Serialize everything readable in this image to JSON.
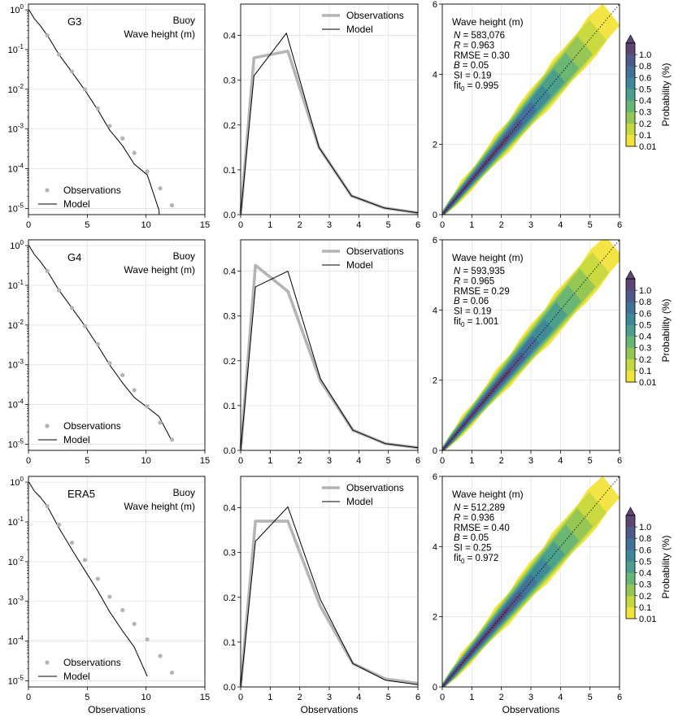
{
  "figure": {
    "xlabel": "Observations",
    "colorbar": {
      "label": "Probability (%)",
      "ticks": [
        "0.01",
        "0.1",
        "0.2",
        "0.3",
        "0.4",
        "0.5",
        "0.6",
        "0.8",
        "1.0"
      ],
      "colors": [
        "#f1e43b",
        "#c6d83f",
        "#93c657",
        "#68b576",
        "#4b9f8c",
        "#3f8898",
        "#43709a",
        "#4f5a8a",
        "#5d4673"
      ]
    },
    "colors": {
      "obs": "#b4b4b4",
      "model": "#000000",
      "density_outer": "#eee04c",
      "density_inner": "#5e3b66"
    }
  },
  "chart_data": [
    {
      "type": "line",
      "panel": "tail-G3",
      "title": "G3",
      "annotation": [
        "Buoy",
        "Wave height (m)"
      ],
      "yscale": "log",
      "xlim": [
        0,
        15
      ],
      "ylim": [
        7e-06,
        1.4
      ],
      "xticks": [
        "0",
        "5",
        "10",
        "15"
      ],
      "yticks": [
        {
          "exp": "0",
          "v": 1
        },
        {
          "exp": "-1",
          "v": 0.1
        },
        {
          "exp": "-2",
          "v": 0.01
        },
        {
          "exp": "-3",
          "v": 0.001
        },
        {
          "exp": "-4",
          "v": 0.0001
        },
        {
          "exp": "-5",
          "v": 1e-05
        }
      ],
      "legend": [
        "Observations",
        "Model"
      ],
      "series": [
        {
          "name": "Observations",
          "style": "dots",
          "x": [
            1.6,
            2.6,
            3.7,
            4.8,
            5.9,
            6.9,
            8.0,
            9.0,
            10.1,
            11.2,
            12.2
          ],
          "y": [
            0.23,
            0.075,
            0.028,
            0.01,
            0.0033,
            0.0012,
            0.00058,
            0.00025,
            8.5e-05,
            3.2e-05,
            1.2e-05
          ]
        },
        {
          "name": "Model",
          "style": "line",
          "x": [
            0.05,
            0.5,
            1.0,
            1.6,
            2.6,
            3.7,
            4.8,
            5.9,
            6.9,
            8.0,
            9.0,
            10.1,
            11.1,
            11.15
          ],
          "y": [
            1.0,
            0.6,
            0.4,
            0.23,
            0.075,
            0.027,
            0.0095,
            0.003,
            0.00095,
            0.00038,
            0.00013,
            7e-05,
            9e-06,
            3e-06
          ]
        }
      ]
    },
    {
      "type": "line",
      "panel": "pdf-G3",
      "xlim": [
        0,
        6
      ],
      "ylim": [
        0,
        0.47
      ],
      "xticks": [
        "0",
        "1",
        "2",
        "3",
        "4",
        "5",
        "6"
      ],
      "yticks": [
        "0.0",
        "0.1",
        "0.2",
        "0.3",
        "0.4"
      ],
      "legend": [
        "Observations",
        "Model"
      ],
      "series": [
        {
          "name": "Observations",
          "x": [
            0.0,
            0.45,
            1.6,
            2.65,
            3.75,
            4.85,
            6.0
          ],
          "y": [
            0.0,
            0.35,
            0.365,
            0.15,
            0.042,
            0.015,
            0.004
          ]
        },
        {
          "name": "Model",
          "x": [
            0.0,
            0.45,
            1.55,
            2.65,
            3.75,
            4.85,
            6.0
          ],
          "y": [
            0.0,
            0.31,
            0.405,
            0.15,
            0.042,
            0.015,
            0.004
          ]
        }
      ]
    },
    {
      "type": "heatmap",
      "panel": "density-G3",
      "xlim": [
        0,
        6
      ],
      "ylim": [
        0,
        6
      ],
      "xticks": [
        "0",
        "1",
        "2",
        "3",
        "4",
        "5",
        "6"
      ],
      "yticks": [
        "0",
        "2",
        "4",
        "6"
      ],
      "title": "Wave height (m)",
      "stats": [
        {
          "k": "N",
          "v": " = 583,076"
        },
        {
          "k": "R",
          "v": " = 0.963"
        },
        {
          "k": "RMSE",
          "v": " = 0.30"
        },
        {
          "k": "B",
          "v": " = 0.05"
        },
        {
          "k": "SI",
          "v": " = 0.19"
        },
        {
          "k": "fit",
          "v": " = 0.995"
        }
      ],
      "upper_extent": 5.7
    },
    {
      "type": "line",
      "panel": "tail-G4",
      "title": "G4",
      "annotation": [
        "Buoy",
        "Wave height (m)"
      ],
      "yscale": "log",
      "xlim": [
        0,
        15
      ],
      "ylim": [
        7e-06,
        1.4
      ],
      "xticks": [
        "0",
        "5",
        "10",
        "15"
      ],
      "yticks": [
        {
          "exp": "0",
          "v": 1
        },
        {
          "exp": "-1",
          "v": 0.1
        },
        {
          "exp": "-2",
          "v": 0.01
        },
        {
          "exp": "-3",
          "v": 0.001
        },
        {
          "exp": "-4",
          "v": 0.0001
        },
        {
          "exp": "-5",
          "v": 1e-05
        }
      ],
      "legend": [
        "Observations",
        "Model"
      ],
      "series": [
        {
          "name": "Observations",
          "style": "dots",
          "x": [
            1.6,
            2.6,
            3.7,
            4.8,
            5.9,
            6.9,
            8.0,
            9.0,
            10.1,
            11.2,
            12.2
          ],
          "y": [
            0.23,
            0.075,
            0.027,
            0.0095,
            0.0033,
            0.0011,
            0.00055,
            0.00023,
            9e-05,
            3.5e-05,
            1.3e-05
          ]
        },
        {
          "name": "Model",
          "style": "line",
          "x": [
            0.05,
            0.5,
            1.0,
            1.6,
            2.6,
            3.7,
            4.8,
            5.9,
            6.9,
            8.0,
            9.0,
            10.1,
            11.1,
            12.2
          ],
          "y": [
            1.0,
            0.6,
            0.4,
            0.23,
            0.075,
            0.027,
            0.0095,
            0.003,
            0.001,
            0.00035,
            0.00015,
            8.5e-05,
            5e-05,
            1.2e-05
          ]
        }
      ]
    },
    {
      "type": "line",
      "panel": "pdf-G4",
      "xlim": [
        0,
        6
      ],
      "ylim": [
        0,
        0.47
      ],
      "xticks": [
        "0",
        "1",
        "2",
        "3",
        "4",
        "5",
        "6"
      ],
      "yticks": [
        "0.0",
        "0.1",
        "0.2",
        "0.3",
        "0.4"
      ],
      "legend": [
        "Observations",
        "Model"
      ],
      "series": [
        {
          "name": "Observations",
          "x": [
            0.0,
            0.5,
            1.6,
            2.7,
            3.8,
            4.9,
            6.0
          ],
          "y": [
            0.0,
            0.413,
            0.355,
            0.155,
            0.045,
            0.015,
            0.006
          ]
        },
        {
          "name": "Model",
          "x": [
            0.0,
            0.5,
            1.6,
            2.7,
            3.8,
            4.9,
            6.0
          ],
          "y": [
            0.0,
            0.365,
            0.4,
            0.16,
            0.045,
            0.015,
            0.006
          ]
        }
      ]
    },
    {
      "type": "heatmap",
      "panel": "density-G4",
      "xlim": [
        0,
        6
      ],
      "ylim": [
        0,
        6
      ],
      "xticks": [
        "0",
        "1",
        "2",
        "3",
        "4",
        "5",
        "6"
      ],
      "yticks": [
        "0",
        "2",
        "4",
        "6"
      ],
      "title": "Wave height (m)",
      "stats": [
        {
          "k": "N",
          "v": " = 593,935"
        },
        {
          "k": "R",
          "v": " = 0.965"
        },
        {
          "k": "RMSE",
          "v": " = 0.29"
        },
        {
          "k": "B",
          "v": " = 0.06"
        },
        {
          "k": "SI",
          "v": " = 0.19"
        },
        {
          "k": "fit",
          "v": " = 1.001"
        }
      ],
      "upper_extent": 5.8
    },
    {
      "type": "line",
      "panel": "tail-ERA5",
      "title": "ERA5",
      "annotation": [
        "Buoy",
        "Wave height (m)"
      ],
      "yscale": "log",
      "xlim": [
        0,
        15
      ],
      "ylim": [
        7e-06,
        1.4
      ],
      "xticks": [
        "0",
        "5",
        "10",
        "15"
      ],
      "yticks": [
        {
          "exp": "0",
          "v": 1
        },
        {
          "exp": "-1",
          "v": 0.1
        },
        {
          "exp": "-2",
          "v": 0.01
        },
        {
          "exp": "-3",
          "v": 0.001
        },
        {
          "exp": "-4",
          "v": 0.0001
        },
        {
          "exp": "-5",
          "v": 1e-05
        }
      ],
      "legend": [
        "Observations",
        "Model"
      ],
      "series": [
        {
          "name": "Observations",
          "style": "dots",
          "x": [
            1.6,
            2.6,
            3.7,
            4.8,
            5.9,
            6.9,
            8.0,
            9.0,
            10.1,
            11.2,
            12.2
          ],
          "y": [
            0.25,
            0.085,
            0.03,
            0.011,
            0.0037,
            0.0013,
            0.0006,
            0.00027,
            0.00011,
            4.2e-05,
            1.6e-05
          ]
        },
        {
          "name": "Model",
          "style": "line",
          "x": [
            0.05,
            0.5,
            1.0,
            1.6,
            2.6,
            3.7,
            4.8,
            5.9,
            6.9,
            8.0,
            9.0,
            10.1
          ],
          "y": [
            1.0,
            0.6,
            0.42,
            0.25,
            0.07,
            0.02,
            0.006,
            0.0018,
            0.00055,
            0.00018,
            7e-05,
            1.3e-05
          ]
        }
      ]
    },
    {
      "type": "line",
      "panel": "pdf-ERA5",
      "xlim": [
        0,
        6
      ],
      "ylim": [
        0,
        0.47
      ],
      "xticks": [
        "0",
        "1",
        "2",
        "3",
        "4",
        "5",
        "6"
      ],
      "yticks": [
        "0.0",
        "0.1",
        "0.2",
        "0.3",
        "0.4"
      ],
      "legend": [
        "Observations",
        "Model"
      ],
      "series": [
        {
          "name": "Observations",
          "x": [
            0.0,
            0.5,
            1.6,
            2.7,
            3.8,
            4.9,
            6.0
          ],
          "y": [
            0.0,
            0.37,
            0.37,
            0.18,
            0.052,
            0.018,
            0.008
          ]
        },
        {
          "name": "Model",
          "x": [
            0.0,
            0.5,
            1.6,
            2.7,
            3.8,
            4.9,
            6.0
          ],
          "y": [
            0.0,
            0.325,
            0.402,
            0.195,
            0.052,
            0.015,
            0.005
          ]
        }
      ]
    },
    {
      "type": "heatmap",
      "panel": "density-ERA5",
      "xlim": [
        0,
        6
      ],
      "ylim": [
        0,
        6
      ],
      "xticks": [
        "0",
        "1",
        "2",
        "3",
        "4",
        "5",
        "6"
      ],
      "yticks": [
        "0",
        "2",
        "4",
        "6"
      ],
      "title": "Wave height (m)",
      "stats": [
        {
          "k": "N",
          "v": " = 512,289"
        },
        {
          "k": "R",
          "v": " = 0.936"
        },
        {
          "k": "RMSE",
          "v": " = 0.40"
        },
        {
          "k": "B",
          "v": " = 0.05"
        },
        {
          "k": "SI",
          "v": " = 0.25"
        },
        {
          "k": "fit",
          "v": " = 0.972"
        }
      ],
      "upper_extent": 5.7
    }
  ]
}
